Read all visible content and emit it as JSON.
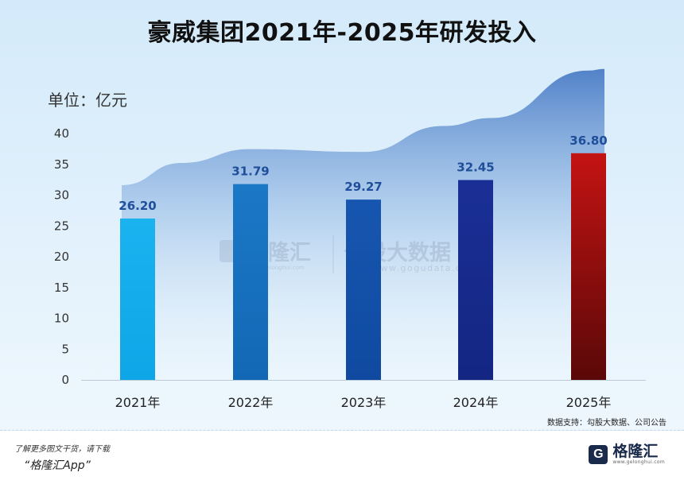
{
  "chart_data": {
    "type": "bar",
    "title": "豪威集团2021年-2025年研发投入",
    "unit_label": "单位：亿元",
    "categories": [
      "2021年",
      "2022年",
      "2023年",
      "2024年",
      "2025年"
    ],
    "values": [
      26.2,
      31.79,
      29.27,
      32.45,
      36.8
    ],
    "data_labels": [
      "26.20",
      "31.79",
      "29.27",
      "32.45",
      "36.80"
    ],
    "ylim": [
      0,
      40
    ],
    "yticks": [
      0,
      5,
      10,
      15,
      20,
      25,
      30,
      35,
      40
    ],
    "grid": false,
    "legend": "none",
    "bar_colors": [
      [
        "#1ab2ef",
        "#0ea6e6"
      ],
      [
        "#1b78c7",
        "#1368b5"
      ],
      [
        "#1756b0",
        "#0f4aa0"
      ],
      [
        "#1a2f96",
        "#142682"
      ],
      [
        "#c41313",
        "#5a0808"
      ]
    ],
    "area_color": "#3a6fc0"
  },
  "source": "数据支持：勾股大数据、公司公告",
  "watermark": {
    "brand": "格隆汇",
    "brand_url": "www.gelonghui.com",
    "partner": "勾股大数据",
    "partner_url": "www.gogudata.com"
  },
  "footer": {
    "line1": "了解更多图文干货，请下载",
    "line2": "“格隆汇App”",
    "logo_mark": "G",
    "logo_name": "格隆汇",
    "logo_url": "www.gelonghui.com"
  }
}
